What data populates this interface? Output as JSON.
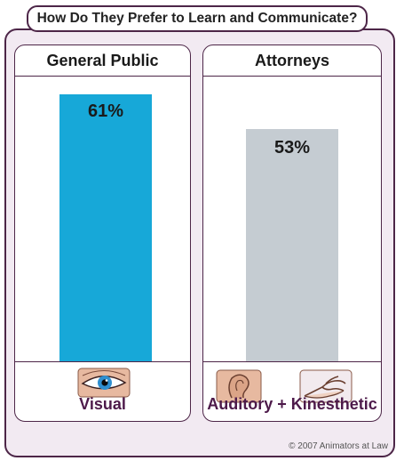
{
  "title": "How Do They Prefer to Learn and Communicate?",
  "copyright": "© 2007 Animators at Law",
  "colors": {
    "frame": "#4d2648",
    "visual_bar": "#17a8d8",
    "attorney_bar": "#c5ccd2"
  },
  "panels": [
    {
      "heading": "General Public",
      "value_label": "61%",
      "footer_label": "Visual",
      "icons": [
        "eye-icon"
      ]
    },
    {
      "heading": "Attorneys",
      "value_label": "53%",
      "footer_label": "Auditory + Kinesthetic",
      "icons": [
        "ear-icon",
        "hand-icon"
      ]
    }
  ],
  "chart_data": {
    "type": "bar",
    "title": "How Do They Prefer to Learn and Communicate?",
    "categories": [
      "General Public",
      "Attorneys"
    ],
    "values": [
      61,
      53
    ],
    "value_labels": [
      "61%",
      "53%"
    ],
    "bar_captions": [
      "Visual",
      "Auditory + Kinesthetic"
    ],
    "ylim": [
      0,
      65
    ]
  }
}
